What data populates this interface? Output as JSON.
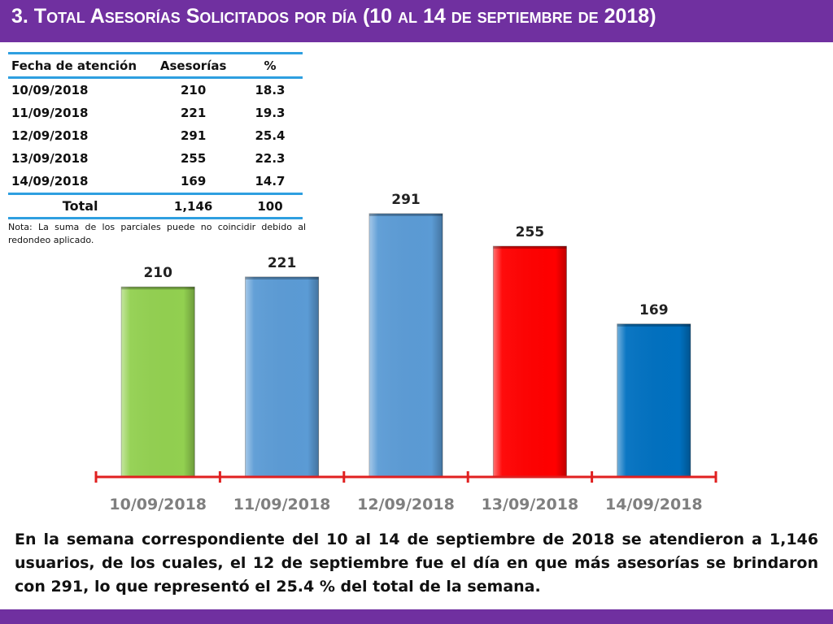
{
  "slide": {
    "title": "3.  Total Asesorías Solicitados por día  (10 al 14 de septiembre de 2018)",
    "note": "Nota: La suma de los parciales puede no coincidir debido al redondeo aplicado.",
    "summary": "En la semana correspondiente del 10 al 14 de septiembre de 2018 se atendieron a 1,146 usuarios, de los cuales, el 12 de septiembre fue el día en que más asesorías se brindaron con 291, lo que representó el 25.4 % del total de la semana.",
    "colors": {
      "title_bar": "#7030a0",
      "table_rule": "#2e9fe0",
      "axis": "#e02020"
    }
  },
  "table": {
    "headers": [
      "Fecha de atención",
      "Asesorías",
      "%"
    ],
    "rows": [
      [
        "10/09/2018",
        "210",
        "18.3"
      ],
      [
        "11/09/2018",
        "221",
        "19.3"
      ],
      [
        "12/09/2018",
        "291",
        "25.4"
      ],
      [
        "13/09/2018",
        "255",
        "22.3"
      ],
      [
        "14/09/2018",
        "169",
        "14.7"
      ]
    ],
    "total": [
      "Total",
      "1,146",
      "100"
    ]
  },
  "chart_data": {
    "type": "bar",
    "categories": [
      "10/09/2018",
      "11/09/2018",
      "12/09/2018",
      "13/09/2018",
      "14/09/2018"
    ],
    "values": [
      210,
      221,
      291,
      255,
      169
    ],
    "data_labels": [
      "210",
      "221",
      "291",
      "255",
      "169"
    ],
    "bar_colors": [
      "#92d050",
      "#5b9bd5",
      "#5b9bd5",
      "#ff0000",
      "#0070c0"
    ],
    "ylim": [
      0,
      340
    ],
    "grid": false,
    "legend": "none",
    "title": "",
    "xlabel": "",
    "ylabel": ""
  }
}
